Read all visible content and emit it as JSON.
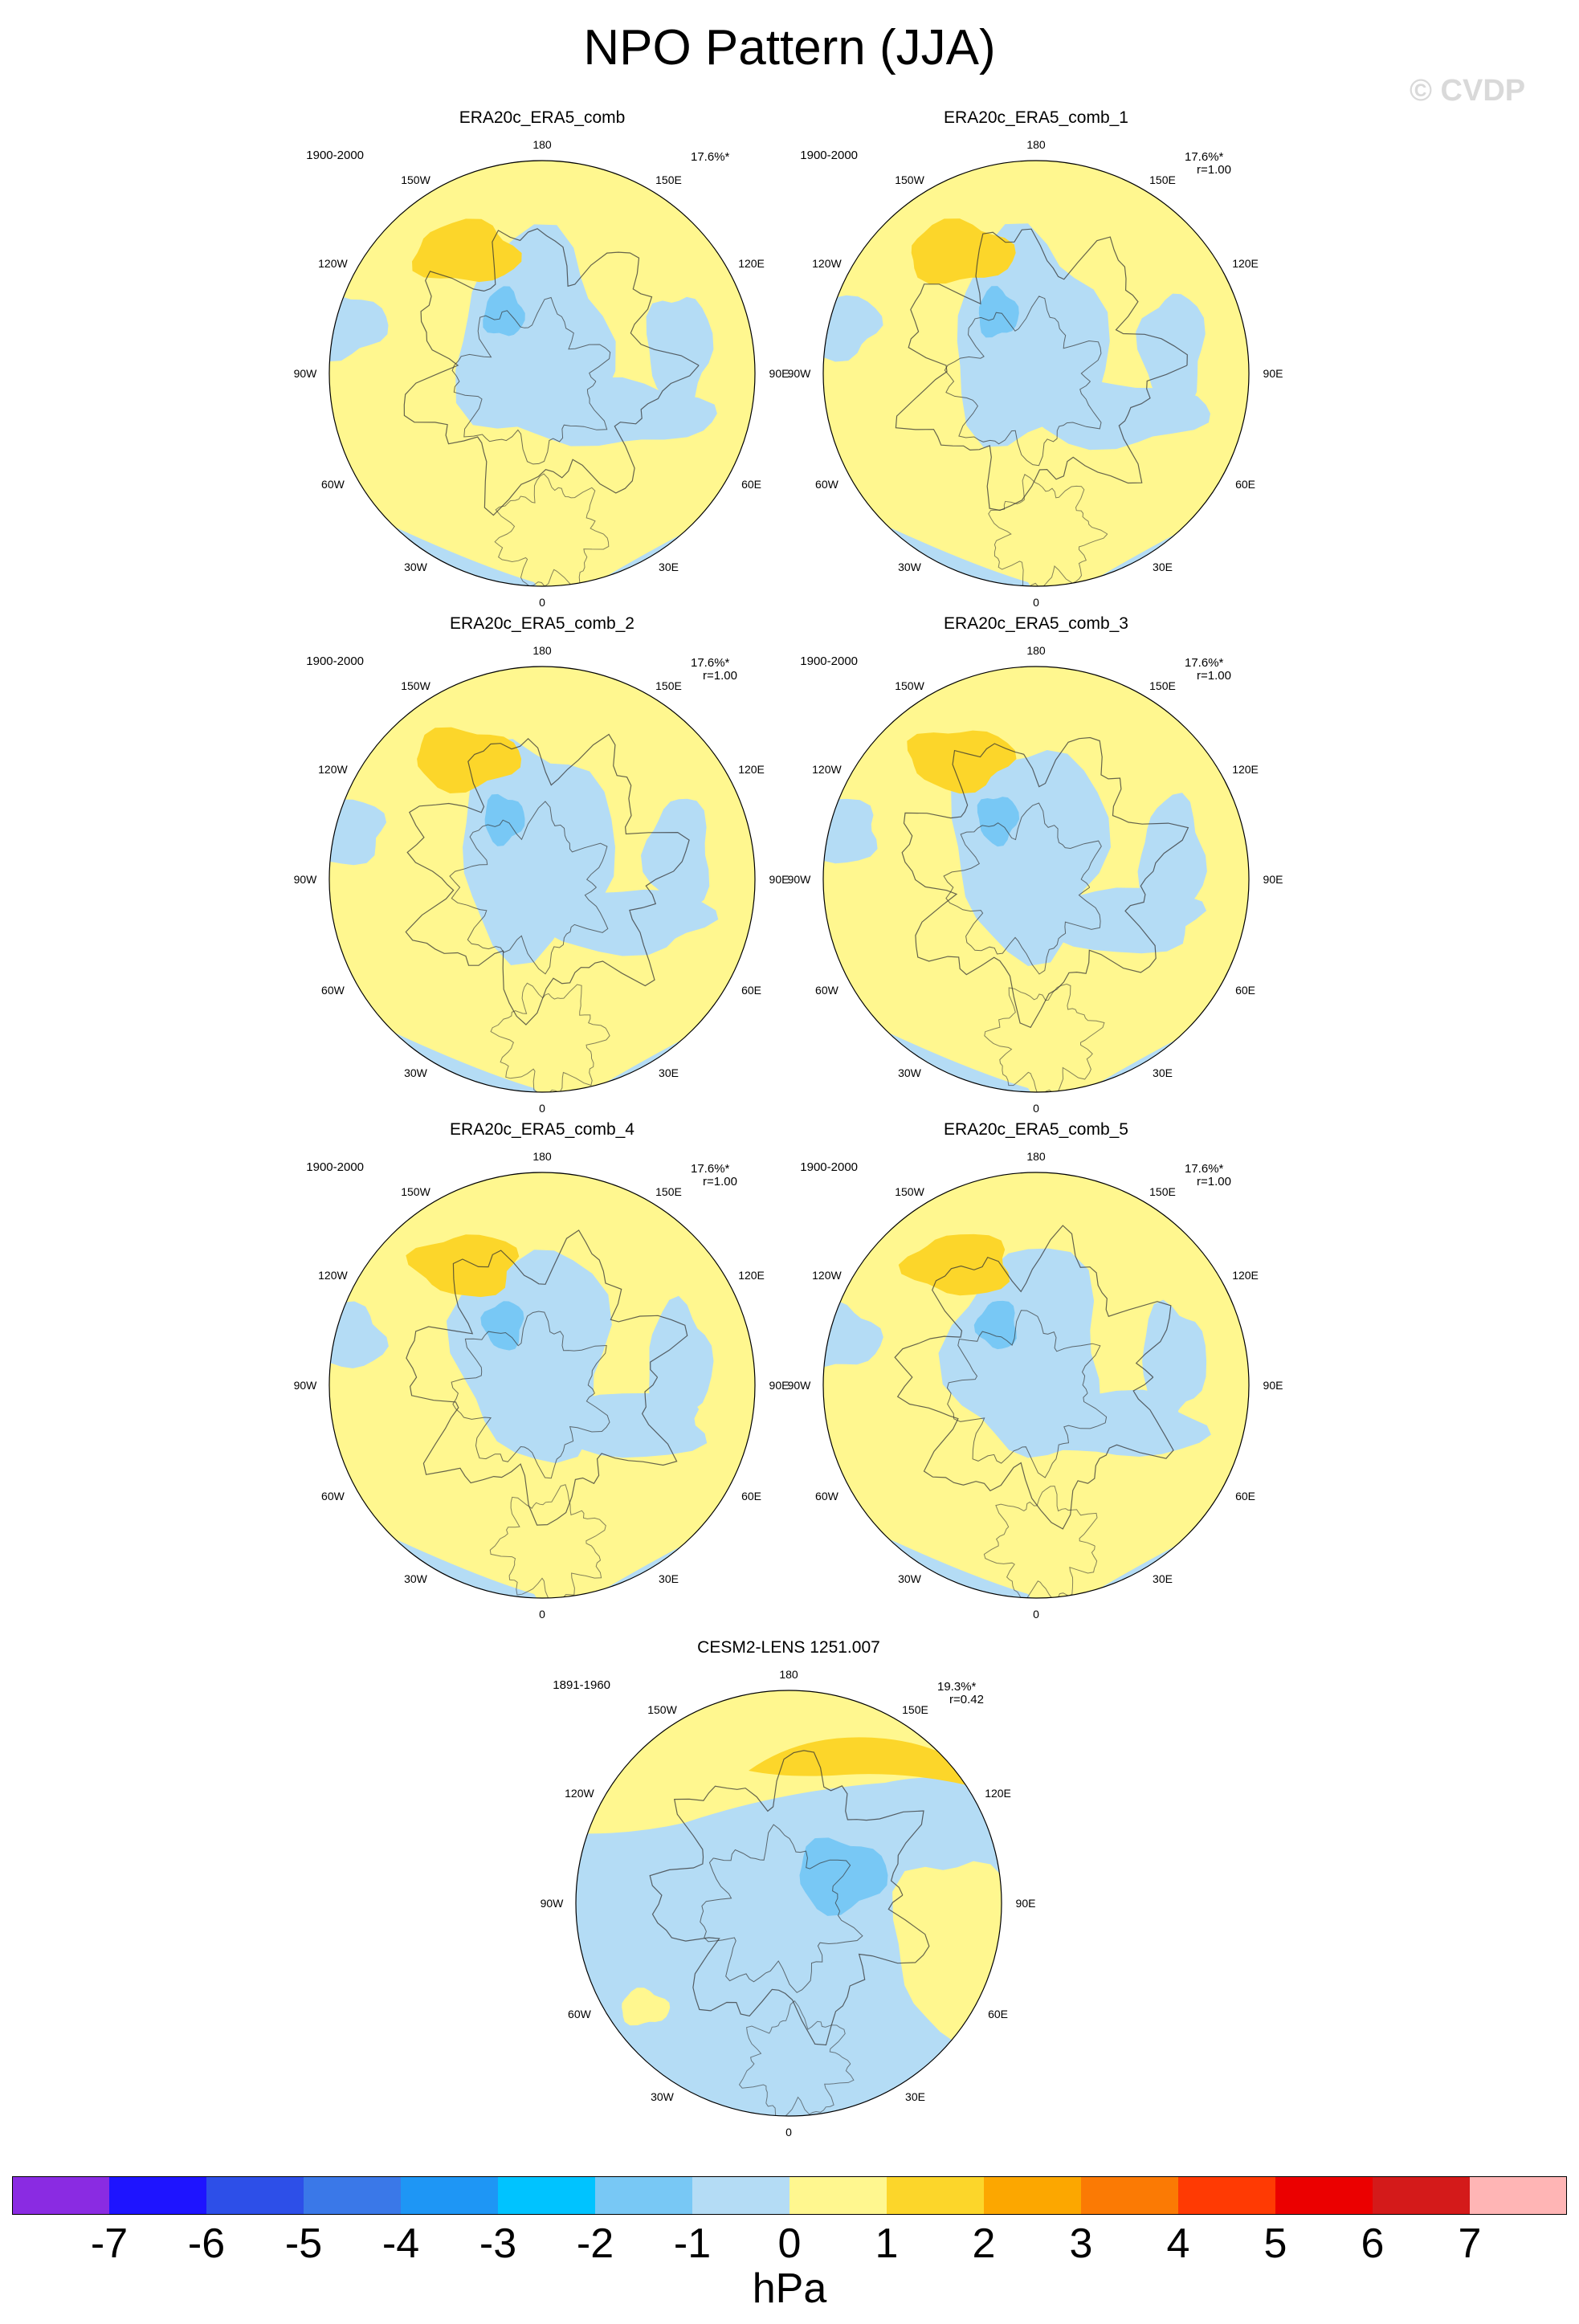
{
  "title": "NPO Pattern (JJA)",
  "watermark": "© CVDP",
  "panels": [
    {
      "title": "ERA20c_ERA5_comb",
      "period": "1900-2000",
      "pct": "17.6%*",
      "corr": ""
    },
    {
      "title": "ERA20c_ERA5_comb_1",
      "period": "1900-2000",
      "pct": "17.6%*",
      "corr": "r=1.00"
    },
    {
      "title": "ERA20c_ERA5_comb_2",
      "period": "1900-2000",
      "pct": "17.6%*",
      "corr": "r=1.00"
    },
    {
      "title": "ERA20c_ERA5_comb_3",
      "period": "1900-2000",
      "pct": "17.6%*",
      "corr": "r=1.00"
    },
    {
      "title": "ERA20c_ERA5_comb_4",
      "period": "1900-2000",
      "pct": "17.6%*",
      "corr": "r=1.00"
    },
    {
      "title": "ERA20c_ERA5_comb_5",
      "period": "1900-2000",
      "pct": "17.6%*",
      "corr": "r=1.00"
    },
    {
      "title": "CESM2-LENS 1251.007",
      "period": "1891-1960",
      "pct": "19.3%*",
      "corr": "r=0.42"
    }
  ],
  "lon_labels": {
    "top": "180",
    "bottom": "0",
    "left": "90W",
    "right": "90E",
    "ul1": "150W",
    "ul2": "120W",
    "ur1": "150E",
    "ur2": "120E",
    "ll1": "60W",
    "ll2": "30W",
    "lr1": "60E",
    "lr2": "30E"
  },
  "colorbar": {
    "units": "hPa",
    "labels": [
      "-7",
      "-6",
      "-5",
      "-4",
      "-3",
      "-2",
      "-1",
      "0",
      "1",
      "2",
      "3",
      "4",
      "5",
      "6",
      "7"
    ],
    "colors": [
      "#8a2be2",
      "#1e14ff",
      "#2d4fe8",
      "#3a78e8",
      "#1e96f5",
      "#00c3ff",
      "#78c8f5",
      "#b4dcf5",
      "#fff78f",
      "#fcd62a",
      "#fca700",
      "#fb7a04",
      "#ff3a03",
      "#eb0000",
      "#d41a1a",
      "#ffb5b5"
    ]
  },
  "map_colors": {
    "neg1": "#b4dcf5",
    "neg2": "#78c8f5",
    "zero": "#fff78f",
    "pos1": "#fcd62a"
  }
}
